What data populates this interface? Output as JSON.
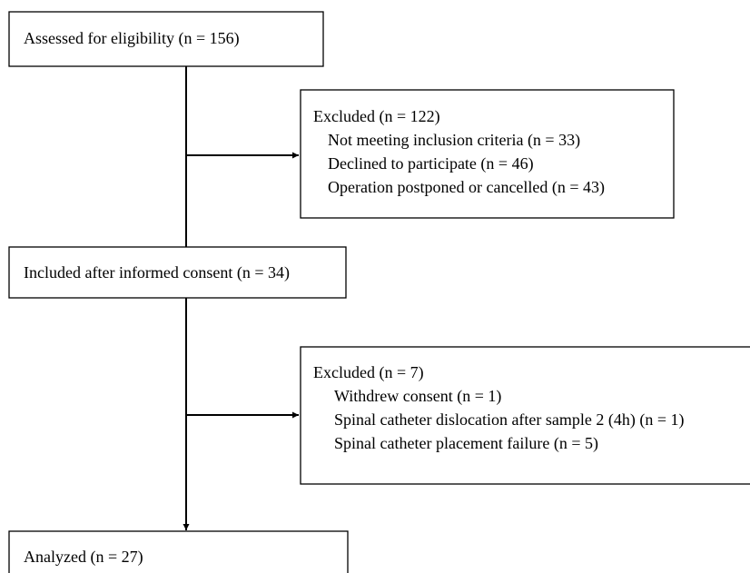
{
  "nodes": [
    {
      "label": "Assessed for eligibility (n = 156)"
    },
    {
      "label": "Excluded  (n = 122)",
      "items": [
        "Not meeting inclusion criteria (n = 33)",
        "Declined to participate (n = 46)",
        "Operation postponed or cancelled (n = 43)"
      ]
    },
    {
      "label": "Included after informed consent (n = 34)"
    },
    {
      "label": "Excluded (n = 7)",
      "items": [
        "Withdrew consent (n = 1)",
        "Spinal catheter dislocation after sample 2 (4h) (n = 1)",
        "Spinal catheter placement failure (n = 5)"
      ]
    },
    {
      "label": "Analyzed (n = 27)"
    }
  ]
}
